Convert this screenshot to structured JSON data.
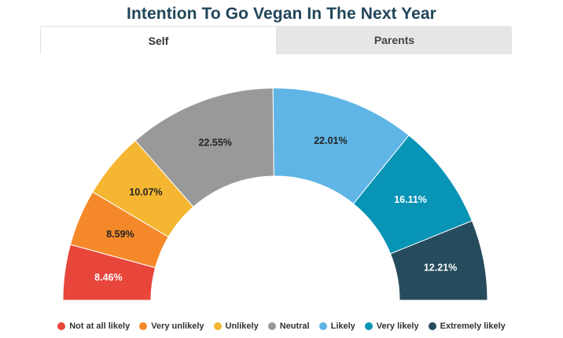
{
  "title": "Intention To Go Vegan In The Next Year",
  "tabs": [
    {
      "label": "Self",
      "active": true
    },
    {
      "label": "Parents",
      "active": false
    }
  ],
  "chart_data": {
    "type": "pie",
    "variant": "semicircle-donut",
    "title": "Intention To Go Vegan In The Next Year",
    "categories": [
      "Not at all likely",
      "Very unlikely",
      "Unlikely",
      "Neutral",
      "Likely",
      "Very likely",
      "Extremely likely"
    ],
    "values": [
      8.46,
      8.59,
      10.07,
      22.55,
      22.01,
      16.11,
      12.21
    ],
    "labels": [
      "8.46%",
      "8.59%",
      "10.07%",
      "22.55%",
      "22.01%",
      "16.11%",
      "12.21%"
    ],
    "colors": [
      "#e8463b",
      "#f5892a",
      "#f5b731",
      "#999999",
      "#5fb5e5",
      "#0894b5",
      "#264b5c"
    ],
    "label_colors": [
      "#ffffff",
      "#222222",
      "#222222",
      "#222222",
      "#222222",
      "#ffffff",
      "#ffffff"
    ],
    "legend_position": "bottom"
  }
}
